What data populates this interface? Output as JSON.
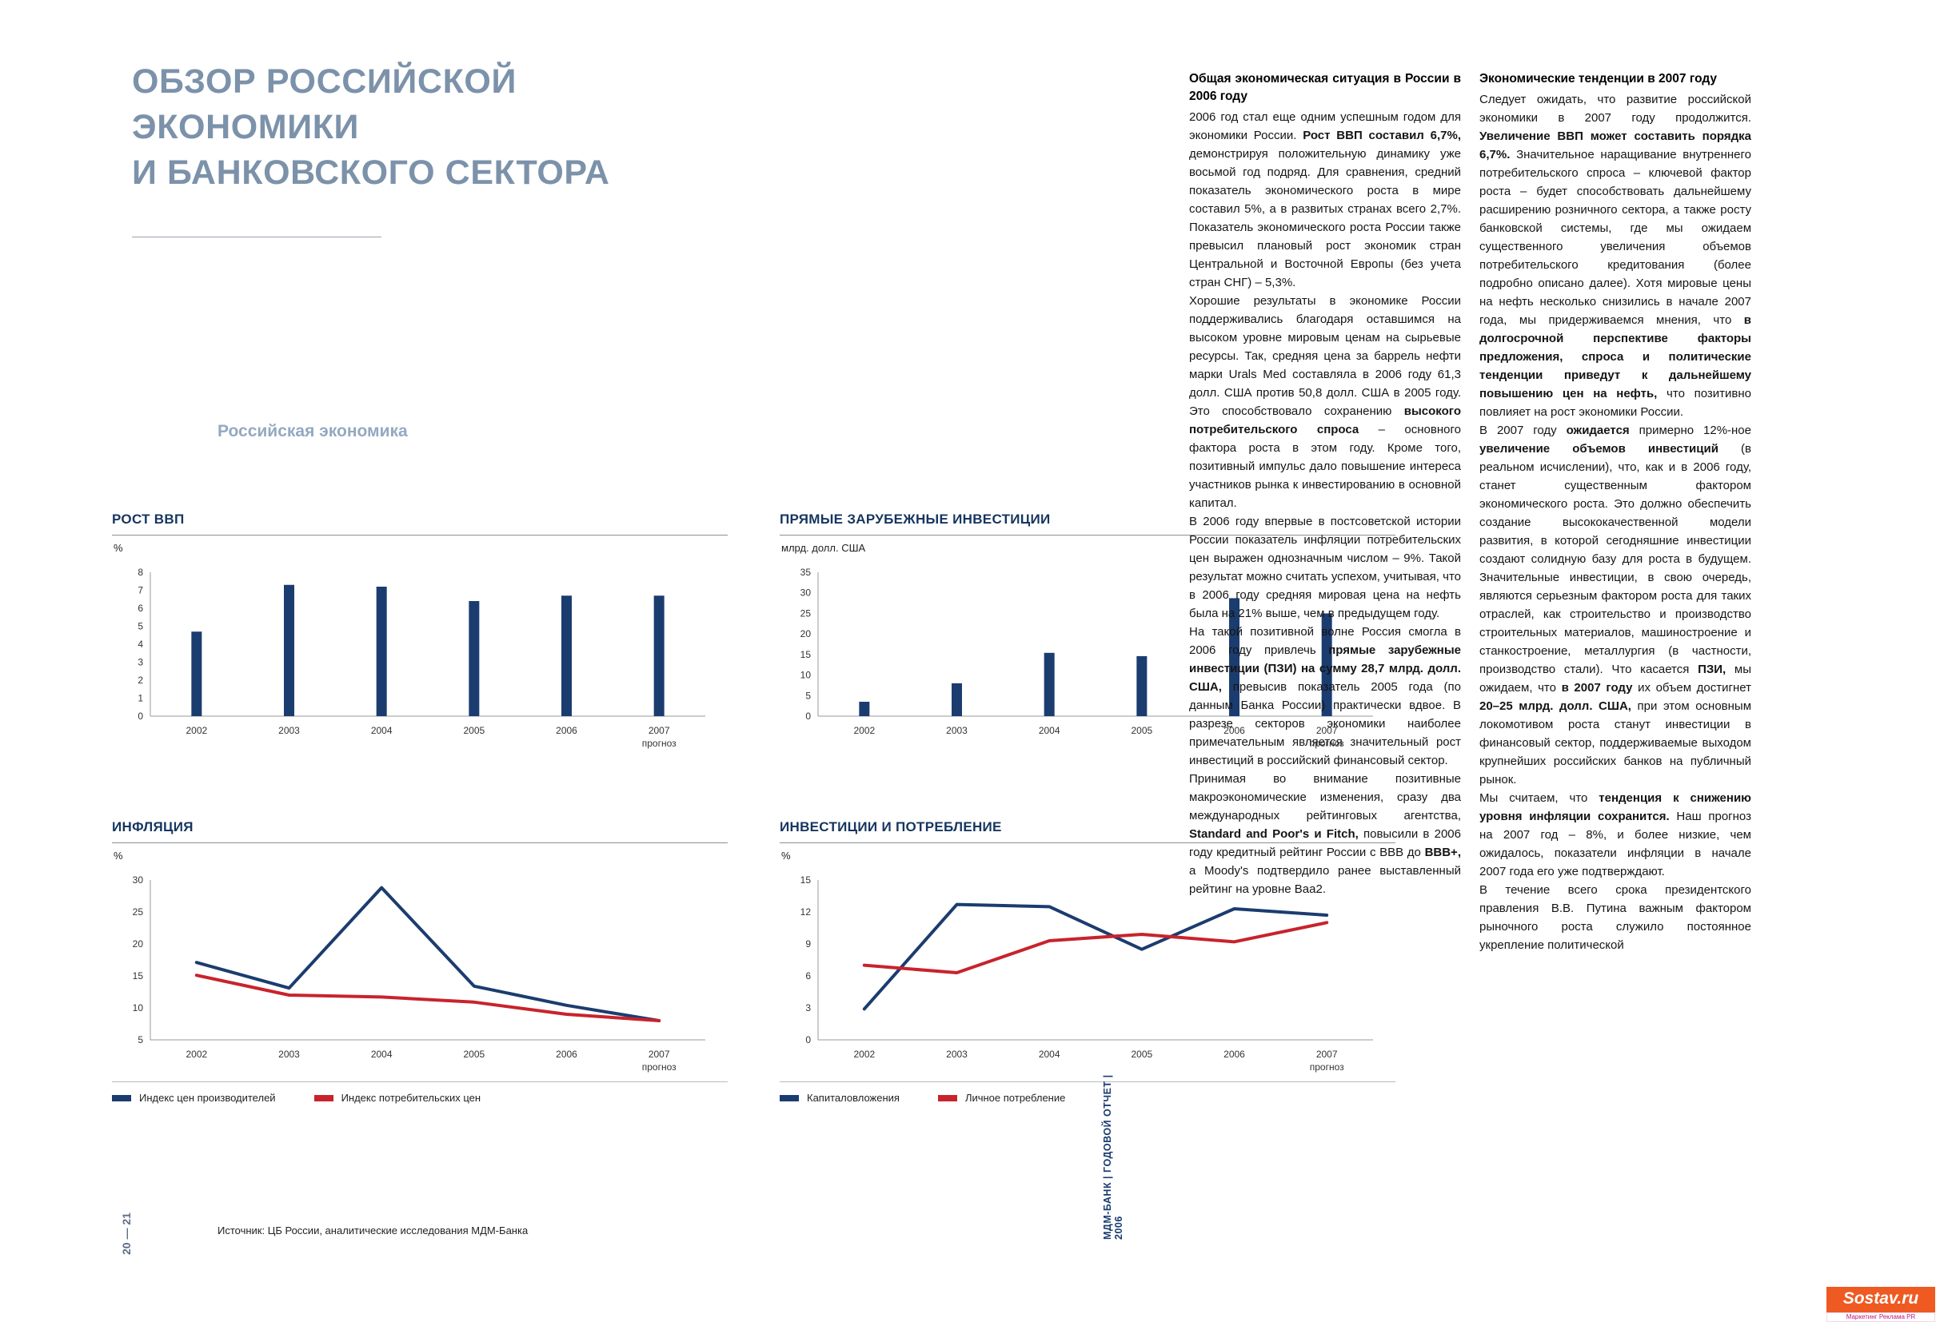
{
  "left_page": {
    "title_lines": [
      "ОБЗОР РОССИЙСКОЙ",
      "ЭКОНОМИКИ",
      "И БАНКОВСКОГО СЕКТОРА"
    ],
    "section_title": "Российская экономика",
    "source_note": "Источник: ЦБ России, аналитические исследования МДМ-Банка",
    "page_numbers": "20 — 21"
  },
  "spine": {
    "text": "МДМ-БАНК | ГОДОВОЙ ОТЧЕТ | 2006"
  },
  "watermark": {
    "brand": "Sostav.ru",
    "tagline": "Маркетинг Реклама PR"
  },
  "colors": {
    "navy": "#1B3C6F",
    "red": "#C8232C",
    "title_blue": "#7C92AA"
  },
  "chart_data": [
    {
      "type": "bar",
      "title": "РОСТ ВВП",
      "unit": "%",
      "categories": [
        "2002",
        "2003",
        "2004",
        "2005",
        "2006",
        "2007"
      ],
      "forecast_note": "прогноз",
      "values": [
        4.7,
        7.3,
        7.2,
        6.4,
        6.7,
        6.7
      ],
      "ylim": [
        0,
        8
      ],
      "yticks": [
        0,
        1,
        2,
        3,
        4,
        5,
        6,
        7,
        8
      ],
      "bar_color": "#1B3C6F",
      "legend_position": "none"
    },
    {
      "type": "bar",
      "title": "ПРЯМЫЕ ЗАРУБЕЖНЫЕ ИНВЕСТИЦИИ",
      "unit": "млрд. долл. США",
      "categories": [
        "2002",
        "2003",
        "2004",
        "2005",
        "2006",
        "2007"
      ],
      "forecast_note": "прогноз",
      "values": [
        3.5,
        8,
        15.4,
        14.6,
        28.7,
        25
      ],
      "ylim": [
        0,
        35
      ],
      "yticks": [
        0,
        5,
        10,
        15,
        20,
        25,
        30,
        35
      ],
      "bar_color": "#1B3C6F",
      "legend_position": "none"
    },
    {
      "type": "line",
      "title": "ИНФЛЯЦИЯ",
      "unit": "%",
      "categories": [
        "2002",
        "2003",
        "2004",
        "2005",
        "2006",
        "2007"
      ],
      "forecast_note": "прогноз",
      "ylim": [
        5,
        30
      ],
      "yticks": [
        5,
        10,
        15,
        20,
        25,
        30
      ],
      "series": [
        {
          "name": "Индекс цен производителей",
          "color": "#1B3C6F",
          "values": [
            17.1,
            13.1,
            28.8,
            13.4,
            10.4,
            8
          ]
        },
        {
          "name": "Индекс потребительских цен",
          "color": "#C8232C",
          "values": [
            15.1,
            12,
            11.7,
            10.9,
            9,
            8
          ]
        }
      ],
      "legend_position": "bottom"
    },
    {
      "type": "line",
      "title": "ИНВЕСТИЦИИ И ПОТРЕБЛЕНИЕ",
      "unit": "%",
      "categories": [
        "2002",
        "2003",
        "2004",
        "2005",
        "2006",
        "2007"
      ],
      "forecast_note": "прогноз",
      "ylim": [
        0,
        15
      ],
      "yticks": [
        0,
        3,
        6,
        9,
        12,
        15
      ],
      "series": [
        {
          "name": "Капиталовложения",
          "color": "#1B3C6F",
          "values": [
            2.9,
            12.7,
            12.5,
            8.5,
            12.3,
            11.7
          ]
        },
        {
          "name": "Личное потребление",
          "color": "#C8232C",
          "values": [
            7,
            6.3,
            9.3,
            9.9,
            9.2,
            11
          ]
        }
      ],
      "legend_position": "bottom"
    }
  ],
  "articles": [
    {
      "heading": "Общая экономическая ситуация в России в 2006 году",
      "paragraphs": [
        "2006 год стал еще одним успешным годом для экономики России. **Рост ВВП составил 6,7%,** демонстрируя положительную динамику уже восьмой год подряд. Для сравнения, средний показатель экономического роста в мире составил 5%, а в развитых странах всего 2,7%. Показатель экономического роста России также превысил плановый рост экономик стран Центральной и Восточной Европы (без учета стран СНГ) – 5,3%.",
        "Хорошие результаты в экономике России поддерживались благодаря оставшимся на высоком уровне мировым ценам на сырьевые ресурсы. Так, средняя цена за баррель нефти марки Urals Med составляла в 2006 году 61,3 долл. США против 50,8 долл. США в 2005 году. Это способствовало сохранению **высокого потребительского спроса** – основного фактора роста в этом году. Кроме того, позитивный импульс дало повышение интереса участников рынка к инвестированию в основной капитал.",
        "В 2006 году впервые в постсоветской истории России показатель инфляции потребительских цен выражен однозначным числом – 9%. Такой результат можно считать успехом, учитывая, что в 2006 году средняя мировая цена на нефть была на 21% выше, чем в предыдущем году.",
        "На такой позитивной волне Россия смогла в 2006 году привлечь **прямые зарубежные инвестиции (ПЗИ) на сумму 28,7 млрд. долл. США,** превысив показатель 2005 года (по данным Банка России) практически вдвое. В разрезе секторов экономики наиболее примечательным является значительный рост инвестиций в российский финансовый сектор.",
        "Принимая во внимание позитивные макроэкономические изменения, сразу два международных рейтинговых агентства, **Standard and Poor's и Fitch,** повысили в 2006 году кредитный рейтинг России с ВВВ до **ВВВ+,** а Moody's подтвердило ранее выставленный рейтинг на уровне Ваа2."
      ]
    },
    {
      "heading": "Экономические тенденции в 2007 году",
      "paragraphs": [
        "Следует ожидать, что развитие российской экономики в 2007 году продолжится. **Увеличение ВВП может составить порядка 6,7%.** Значительное наращивание внутреннего потребительского спроса – ключевой фактор роста – будет способствовать дальнейшему расширению розничного сектора, а также росту банковской системы, где мы ожидаем существенного увеличения объемов потребительского кредитования (более подробно описано далее). Хотя мировые цены на нефть несколько снизились в начале 2007 года, мы придерживаемся мнения, что **в долгосрочной перспективе факторы предложения, спроса и политические тенденции приведут к дальнейшему повышению цен на нефть,** что позитивно повлияет на рост экономики России.",
        "В 2007 году **ожидается** примерно 12%-ное **увеличение объемов инвестиций** (в реальном исчислении), что, как и в 2006 году, станет существенным фактором экономического роста. Это должно обеспечить создание высококачественной модели развития, в которой сегодняшние инвестиции создают солидную базу для роста в будущем. Значительные инвестиции, в свою очередь, являются серьезным фактором роста для таких отраслей, как строительство и производство строительных материалов, машиностроение и станкостроение, металлургия (в частности, производство стали). Что касается **ПЗИ,** мы ожидаем, что **в 2007 году** их объем достигнет **20–25 млрд. долл. США,** при этом основным локомотивом роста станут инвестиции в финансовый сектор, поддерживаемые выходом крупнейших российских банков на публичный рынок.",
        "Мы считаем, что **тенденция к снижению уровня инфляции сохранится.** Наш прогноз на 2007 год – 8%, и более низкие, чем ожидалось, показатели инфляции в начале 2007 года его уже подтверждают.",
        "В течение всего срока президентского правления В.В. Путина важным фактором рыночного роста служило постоянное укрепление политической"
      ]
    }
  ]
}
